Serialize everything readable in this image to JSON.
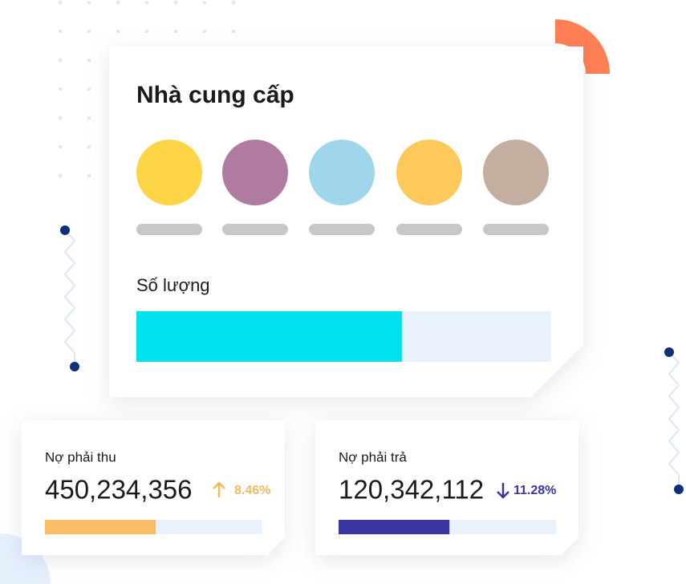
{
  "supplier_card": {
    "title": "Nhà cung cấp",
    "quantity_label": "Số lượng",
    "quantity_percent": 64
  },
  "receivable": {
    "label": "Nợ phải thu",
    "amount": "450,234,356",
    "change": "8.46%",
    "progress_percent": 51
  },
  "payable": {
    "label": "Nợ phải trả",
    "amount": "120,342,112",
    "change": "11.28%",
    "progress_percent": 51
  }
}
